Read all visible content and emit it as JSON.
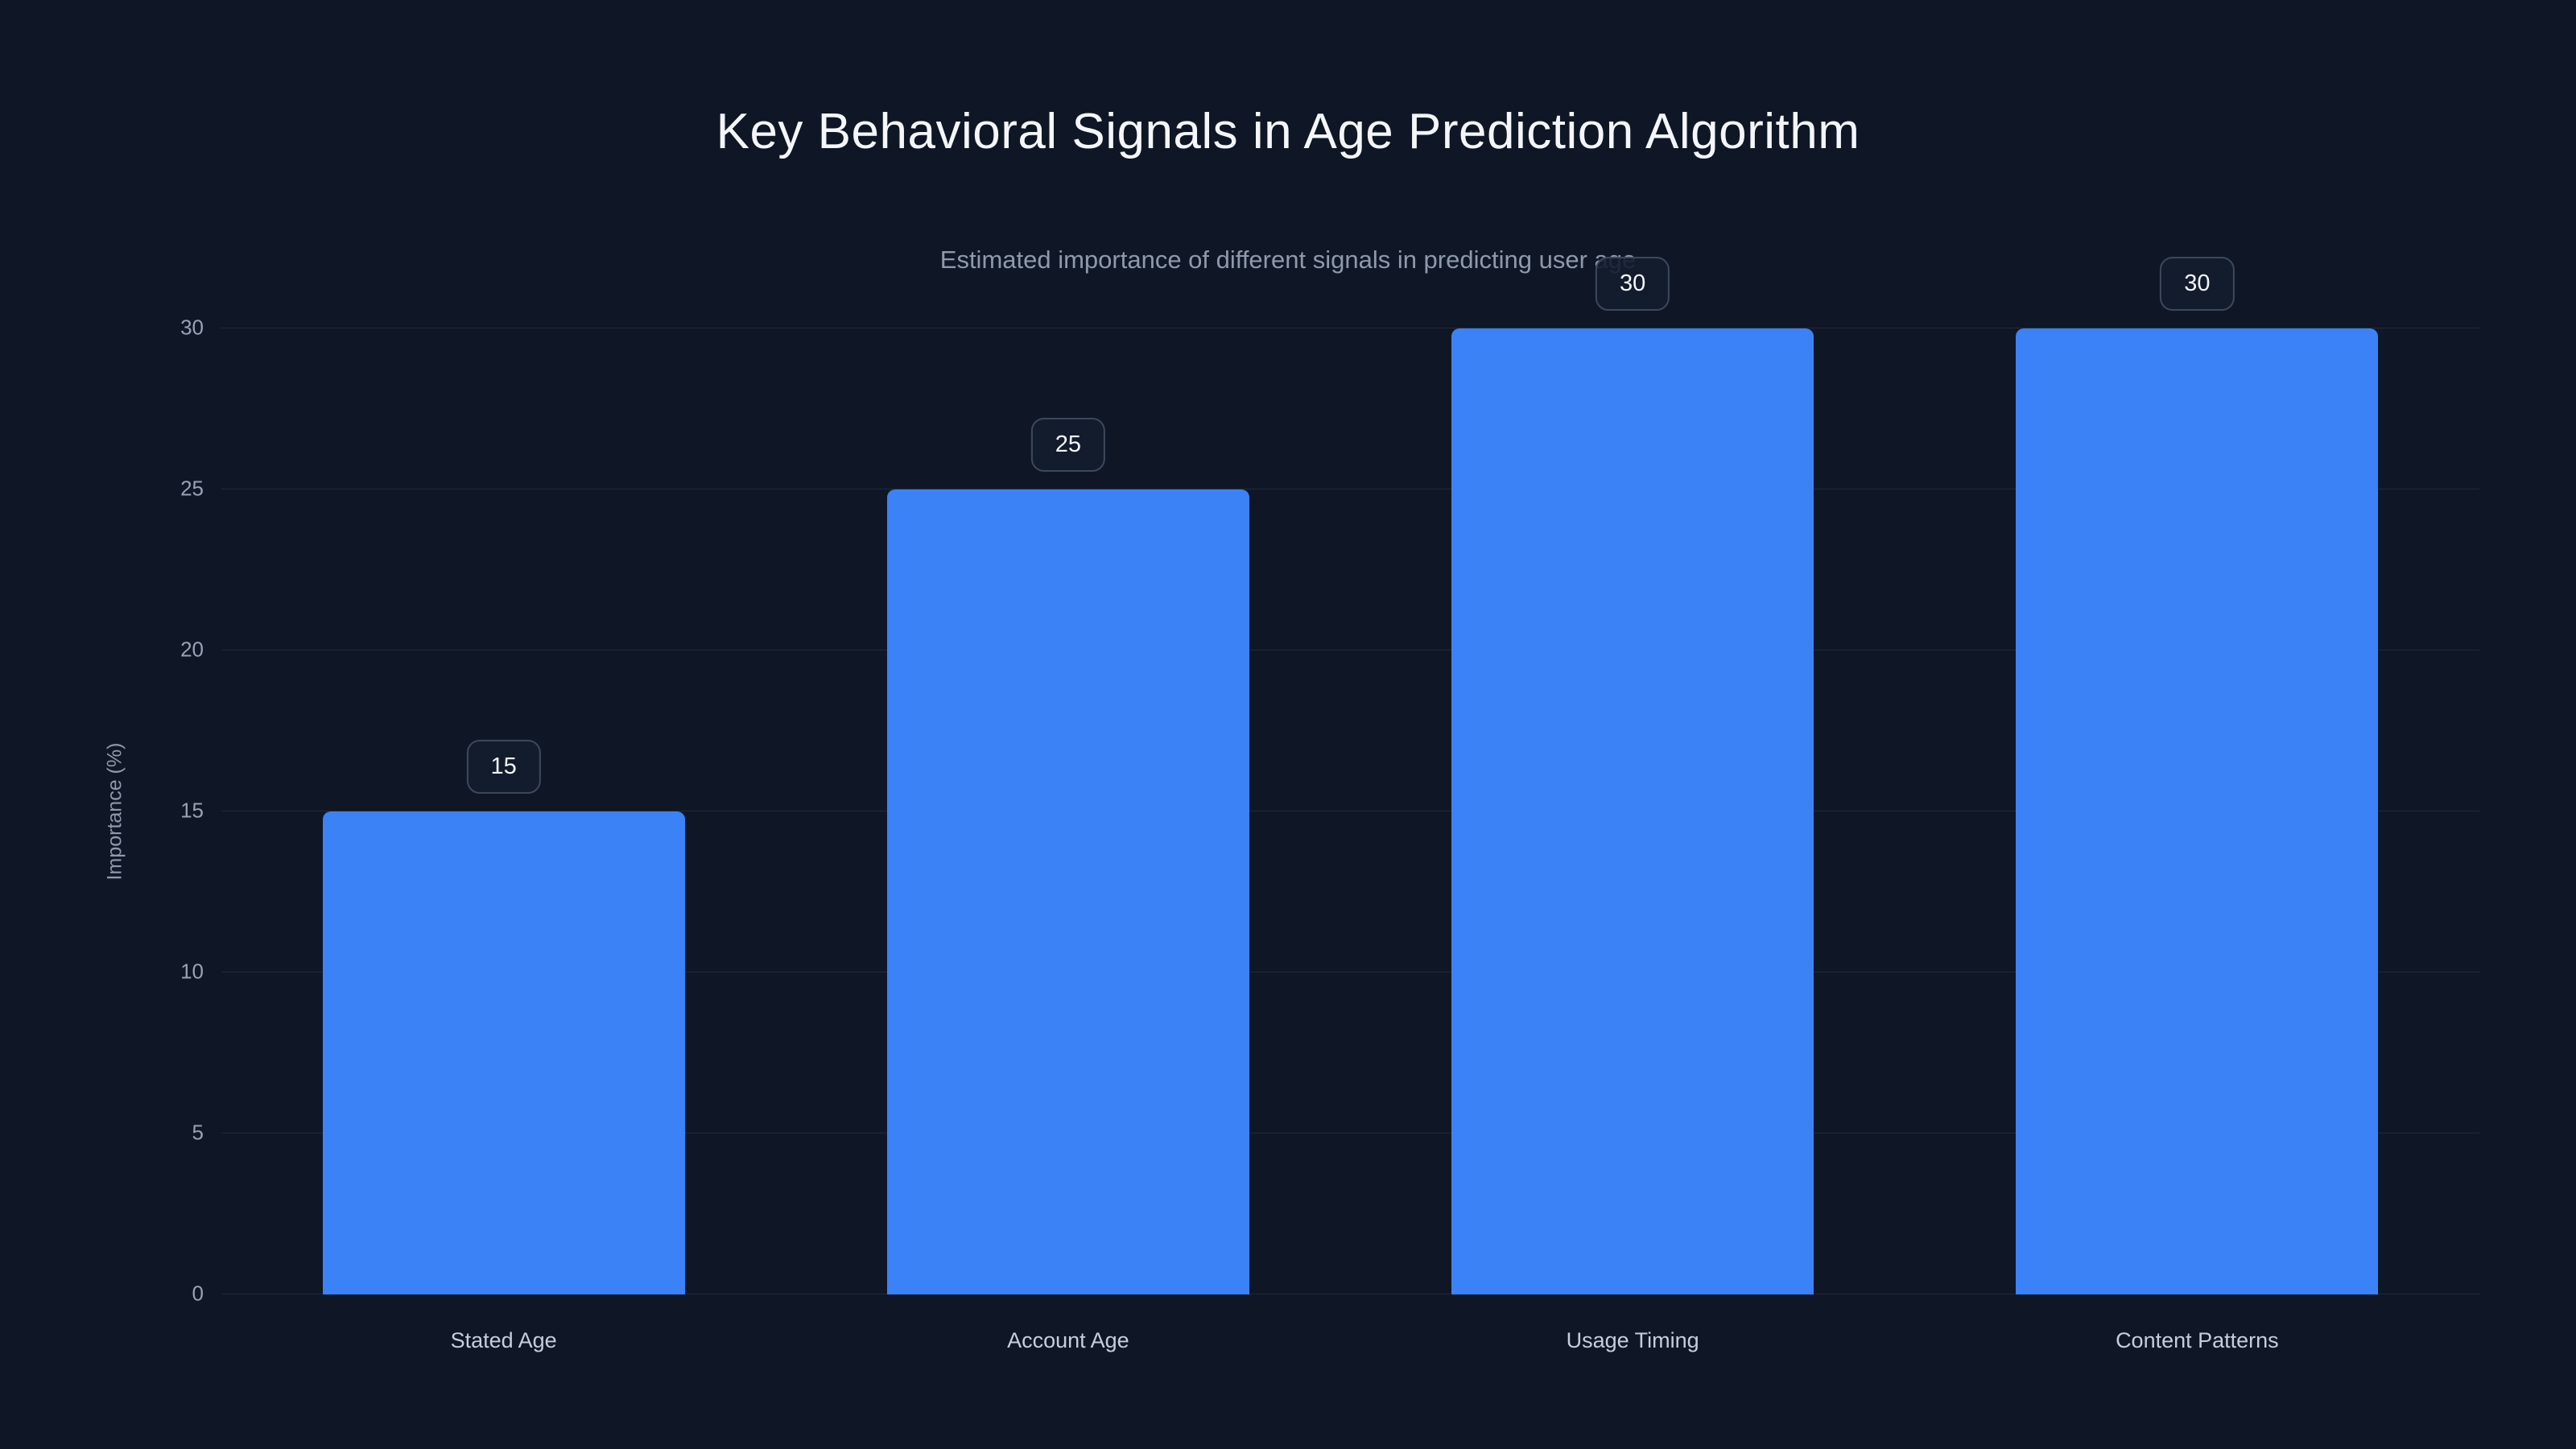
{
  "chart": {
    "title": "Key Behavioral Signals in Age Prediction Algorithm",
    "subtitle": "Estimated importance of different signals in predicting user age"
  },
  "chart_data": {
    "type": "bar",
    "title": "Key Behavioral Signals in Age Prediction Algorithm",
    "subtitle": "Estimated importance of different signals in predicting user age",
    "categories": [
      "Stated Age",
      "Account Age",
      "Usage Timing",
      "Content Patterns"
    ],
    "values": [
      15,
      25,
      30,
      30
    ],
    "data_labels": [
      "15",
      "25",
      "30",
      "30"
    ],
    "xlabel": "",
    "ylabel": "Importance (%)",
    "ylim": [
      0,
      30
    ],
    "yticks": [
      0,
      5,
      10,
      15,
      20,
      25,
      30
    ],
    "grid": true,
    "legend": false,
    "bar_color": "#3b82f6",
    "background_color": "#0f1726"
  }
}
